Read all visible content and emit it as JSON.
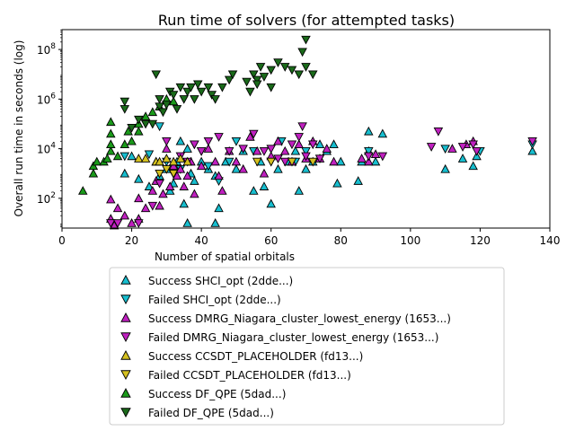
{
  "chart_data": {
    "type": "scatter",
    "title": "Run time of solvers (for attempted tasks)",
    "xlabel": "Number of spatial orbitals",
    "ylabel": "Overall run time in seconds (log)",
    "xlim": [
      0,
      140
    ],
    "ylim_log10": [
      0.8,
      8.8
    ],
    "yscale": "log",
    "x_ticks": [
      "0",
      "20",
      "40",
      "60",
      "80",
      "100",
      "120",
      "140"
    ],
    "y_ticks": [
      {
        "base": "10",
        "exp": "2",
        "value": 100
      },
      {
        "base": "10",
        "exp": "4",
        "value": 10000
      },
      {
        "base": "10",
        "exp": "6",
        "value": 1000000
      },
      {
        "base": "10",
        "exp": "8",
        "value": 100000000
      }
    ],
    "legend_position": "below-plot",
    "series": [
      {
        "name": "Success SHCI_opt (2dde...)",
        "color": "#17becf",
        "marker": "triangle-up",
        "points": [
          [
            18,
            1000
          ],
          [
            20,
            5000
          ],
          [
            22,
            600
          ],
          [
            25,
            300
          ],
          [
            27,
            3000
          ],
          [
            28,
            800
          ],
          [
            30,
            1500
          ],
          [
            31,
            200
          ],
          [
            32,
            400
          ],
          [
            33,
            3000
          ],
          [
            34,
            20000
          ],
          [
            35,
            60
          ],
          [
            36,
            10000
          ],
          [
            37,
            1000
          ],
          [
            38,
            500
          ],
          [
            40,
            3000
          ],
          [
            42,
            1500
          ],
          [
            44,
            800
          ],
          [
            45,
            40
          ],
          [
            47,
            3000
          ],
          [
            50,
            1500
          ],
          [
            52,
            8000
          ],
          [
            55,
            200
          ],
          [
            57,
            3000
          ],
          [
            58,
            300
          ],
          [
            60,
            60
          ],
          [
            62,
            1500
          ],
          [
            65,
            3000
          ],
          [
            67,
            8000
          ],
          [
            68,
            200
          ],
          [
            70,
            1500
          ],
          [
            72,
            3000
          ],
          [
            74,
            15000
          ],
          [
            76,
            8000
          ],
          [
            78,
            15000
          ],
          [
            79,
            400
          ],
          [
            80,
            3000
          ],
          [
            85,
            500
          ],
          [
            86,
            3000
          ],
          [
            88,
            8000
          ],
          [
            88,
            50000
          ],
          [
            90,
            3000
          ],
          [
            92,
            40000
          ],
          [
            110,
            1500
          ],
          [
            115,
            4000
          ],
          [
            118,
            2000
          ],
          [
            119,
            5000
          ],
          [
            135,
            8000
          ],
          [
            36,
            10
          ],
          [
            44,
            10
          ]
        ]
      },
      {
        "name": "Failed SHCI_opt (2dde...)",
        "color": "#17becf",
        "marker": "triangle-down",
        "points": [
          [
            18,
            5000
          ],
          [
            25,
            6000
          ],
          [
            28,
            80000
          ],
          [
            30,
            3000
          ],
          [
            32,
            1000
          ],
          [
            34,
            1500
          ],
          [
            38,
            15000
          ],
          [
            40,
            8000
          ],
          [
            42,
            2000
          ],
          [
            45,
            500
          ],
          [
            48,
            3000
          ],
          [
            50,
            20000
          ],
          [
            55,
            8000
          ],
          [
            60,
            3000
          ],
          [
            63,
            20000
          ],
          [
            67,
            3000
          ],
          [
            70,
            8000
          ],
          [
            88,
            8000
          ],
          [
            110,
            10000
          ],
          [
            120,
            8000
          ],
          [
            135,
            15000
          ]
        ]
      },
      {
        "name": "Success DMRG_Niagara_cluster_lowest_energy (1653...)",
        "color": "#c020c0",
        "marker": "triangle-up",
        "points": [
          [
            14,
            90
          ],
          [
            14,
            15
          ],
          [
            15,
            8
          ],
          [
            16,
            40
          ],
          [
            18,
            20
          ],
          [
            20,
            10
          ],
          [
            22,
            100
          ],
          [
            22,
            15
          ],
          [
            24,
            40
          ],
          [
            26,
            200
          ],
          [
            27,
            500
          ],
          [
            28,
            50
          ],
          [
            29,
            150
          ],
          [
            30,
            10000
          ],
          [
            31,
            300
          ],
          [
            32,
            2000
          ],
          [
            33,
            800
          ],
          [
            34,
            1500
          ],
          [
            35,
            300
          ],
          [
            36,
            800
          ],
          [
            37,
            3000
          ],
          [
            38,
            150
          ],
          [
            40,
            2000
          ],
          [
            42,
            10000
          ],
          [
            44,
            3000
          ],
          [
            45,
            800
          ],
          [
            46,
            200
          ],
          [
            48,
            8000
          ],
          [
            50,
            3000
          ],
          [
            52,
            1500
          ],
          [
            54,
            30000
          ],
          [
            56,
            8000
          ],
          [
            58,
            1000
          ],
          [
            60,
            5000
          ],
          [
            62,
            20000
          ],
          [
            64,
            8000
          ],
          [
            66,
            3000
          ],
          [
            68,
            15000
          ],
          [
            70,
            4000
          ],
          [
            72,
            20000
          ],
          [
            74,
            4000
          ],
          [
            76,
            10000
          ],
          [
            78,
            3000
          ],
          [
            86,
            4000
          ],
          [
            88,
            3000
          ],
          [
            90,
            6000
          ],
          [
            112,
            10000
          ],
          [
            116,
            15000
          ],
          [
            118,
            20000
          ]
        ]
      },
      {
        "name": "Failed DMRG_Niagara_cluster_lowest_energy (1653...)",
        "color": "#c020c0",
        "marker": "triangle-down",
        "points": [
          [
            14,
            10
          ],
          [
            16,
            10
          ],
          [
            22,
            10
          ],
          [
            26,
            50
          ],
          [
            28,
            400
          ],
          [
            30,
            20000
          ],
          [
            32,
            1000
          ],
          [
            34,
            5000
          ],
          [
            36,
            3000
          ],
          [
            38,
            15000
          ],
          [
            40,
            8000
          ],
          [
            42,
            20000
          ],
          [
            45,
            30000
          ],
          [
            48,
            8000
          ],
          [
            52,
            10000
          ],
          [
            55,
            40000
          ],
          [
            58,
            8000
          ],
          [
            60,
            10000
          ],
          [
            62,
            4000
          ],
          [
            64,
            3000
          ],
          [
            66,
            15000
          ],
          [
            68,
            30000
          ],
          [
            69,
            80000
          ],
          [
            70,
            5000
          ],
          [
            72,
            15000
          ],
          [
            74,
            4000
          ],
          [
            88,
            5000
          ],
          [
            92,
            5000
          ],
          [
            106,
            12000
          ],
          [
            108,
            50000
          ],
          [
            115,
            12000
          ],
          [
            118,
            15000
          ],
          [
            119,
            8000
          ],
          [
            135,
            20000
          ]
        ]
      },
      {
        "name": "Success CCSDT_PLACEHOLDER (fd13...)",
        "color": "#d4c020",
        "marker": "triangle-up",
        "points": [
          [
            22,
            4000
          ],
          [
            24,
            4000
          ],
          [
            27,
            3000
          ],
          [
            28,
            3000
          ],
          [
            30,
            4000
          ],
          [
            32,
            3000
          ],
          [
            34,
            4000
          ],
          [
            36,
            3000
          ]
        ]
      },
      {
        "name": "Failed CCSDT_PLACEHOLDER (fd13...)",
        "color": "#d4c020",
        "marker": "triangle-down",
        "points": [
          [
            28,
            1000
          ],
          [
            30,
            1500
          ],
          [
            32,
            1000
          ],
          [
            56,
            3000
          ],
          [
            60,
            3000
          ],
          [
            66,
            3000
          ],
          [
            72,
            3000
          ]
        ]
      },
      {
        "name": "Success DF_QPE (5dad...)",
        "color": "#1a9a1a",
        "marker": "triangle-up",
        "points": [
          [
            6,
            200
          ],
          [
            9,
            1000
          ],
          [
            9,
            2000
          ],
          [
            10,
            3000
          ],
          [
            12,
            3000
          ],
          [
            13,
            4000
          ],
          [
            14,
            8000
          ],
          [
            14,
            15000
          ],
          [
            14,
            40000
          ],
          [
            14,
            120000
          ],
          [
            16,
            5000
          ],
          [
            18,
            15000
          ],
          [
            19,
            50000
          ],
          [
            20,
            20000
          ],
          [
            22,
            50000
          ],
          [
            22,
            100000
          ],
          [
            24,
            200000
          ],
          [
            26,
            300000
          ],
          [
            28,
            500000
          ],
          [
            30,
            1000000
          ],
          [
            32,
            800000
          ]
        ]
      },
      {
        "name": "Failed DF_QPE (5dad...)",
        "color": "#1a6a1a",
        "marker": "triangle-down",
        "points": [
          [
            18,
            800000
          ],
          [
            18,
            400000
          ],
          [
            20,
            70000
          ],
          [
            22,
            150000
          ],
          [
            24,
            100000
          ],
          [
            26,
            100000
          ],
          [
            27,
            10000000
          ],
          [
            28,
            1000000
          ],
          [
            28,
            500000
          ],
          [
            29,
            300000
          ],
          [
            30,
            600000
          ],
          [
            31,
            2000000
          ],
          [
            32,
            1500000
          ],
          [
            33,
            400000
          ],
          [
            34,
            3000000
          ],
          [
            35,
            1000000
          ],
          [
            36,
            2000000
          ],
          [
            37,
            3000000
          ],
          [
            38,
            1000000
          ],
          [
            39,
            4000000
          ],
          [
            40,
            2000000
          ],
          [
            42,
            3000000
          ],
          [
            43,
            1500000
          ],
          [
            44,
            1000000
          ],
          [
            46,
            3000000
          ],
          [
            48,
            6000000
          ],
          [
            49,
            10000000
          ],
          [
            53,
            5000000
          ],
          [
            55,
            10000000
          ],
          [
            56,
            6000000
          ],
          [
            57,
            20000000
          ],
          [
            58,
            8000000
          ],
          [
            60,
            3000000
          ],
          [
            60,
            15000000
          ],
          [
            62,
            30000000
          ],
          [
            64,
            20000000
          ],
          [
            66,
            15000000
          ],
          [
            68,
            10000000
          ],
          [
            69,
            80000000
          ],
          [
            70,
            250000000
          ],
          [
            70,
            20000000
          ],
          [
            72,
            10000000
          ],
          [
            54,
            2000000
          ],
          [
            56,
            4000000
          ]
        ]
      }
    ]
  }
}
